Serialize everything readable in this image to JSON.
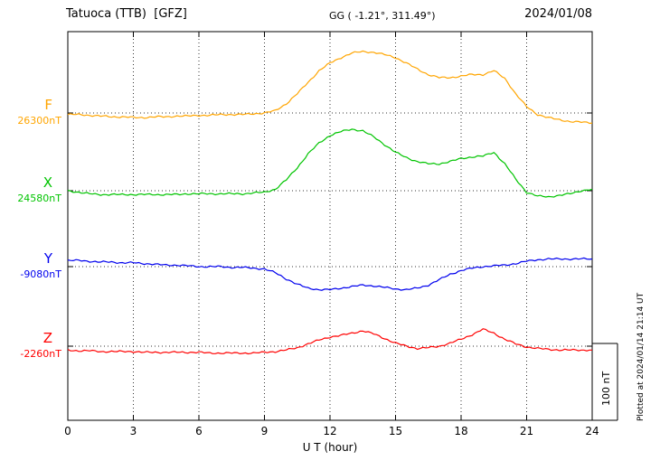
{
  "header": {
    "station": "Tatuoca (TTB)  [GFZ]",
    "coords": "GG ( -1.21°, 311.49°)",
    "date": "2024/01/08"
  },
  "footer": {
    "xlabel": "U T (hour)"
  },
  "side": {
    "scale_label": "100 nT",
    "plotted_at": "Plotted at 2024/01/14 21:14 UT"
  },
  "chart_data": {
    "type": "line",
    "title": "Tatuoca (TTB) [GFZ] magnetogram 2024/01/08",
    "xlabel": "U T (hour)",
    "x_range": [
      0,
      24
    ],
    "x_ticks": [
      0,
      3,
      6,
      9,
      12,
      15,
      18,
      21,
      24
    ],
    "x_step_hours": 0.5,
    "scale_bar_nT": 100,
    "grid": "dotted",
    "series": [
      {
        "name": "F",
        "baseline_nT": 26300,
        "baseline_label": "26300nT",
        "color": "#FFA500",
        "values_unit": "nT offset from baseline",
        "values": [
          -2,
          -2,
          -3,
          -4,
          -5,
          -5,
          -6,
          -6,
          -5,
          -5,
          -4,
          -4,
          -3,
          -3,
          -2,
          -2,
          -2,
          -1,
          0,
          3,
          12,
          25,
          40,
          55,
          65,
          72,
          78,
          80,
          79,
          76,
          72,
          65,
          57,
          50,
          46,
          46,
          48,
          50,
          50,
          55,
          45,
          25,
          8,
          -2,
          -6,
          -9,
          -11,
          -12,
          -13
        ]
      },
      {
        "name": "X",
        "baseline_nT": 24580,
        "baseline_label": "24580nT",
        "color": "#00C400",
        "values_unit": "nT offset from baseline",
        "values": [
          0,
          -2,
          -4,
          -5,
          -5,
          -5,
          -5,
          -5,
          -5,
          -5,
          -5,
          -4,
          -4,
          -4,
          -4,
          -4,
          -4,
          -3,
          -2,
          2,
          14,
          30,
          48,
          62,
          72,
          77,
          80,
          78,
          70,
          60,
          50,
          43,
          38,
          35,
          35,
          38,
          42,
          44,
          45,
          50,
          35,
          15,
          -2,
          -7,
          -8,
          -6,
          -4,
          0,
          2
        ]
      },
      {
        "name": "Y",
        "baseline_nT": -9080,
        "baseline_label": "-9080nT",
        "color": "#0000EE",
        "values_unit": "nT offset from baseline",
        "values": [
          8,
          8,
          7,
          6,
          6,
          5,
          5,
          4,
          3,
          2,
          2,
          1,
          0,
          0,
          0,
          -1,
          -1,
          -2,
          -3,
          -8,
          -16,
          -23,
          -28,
          -30,
          -30,
          -28,
          -26,
          -24,
          -25,
          -27,
          -29,
          -30,
          -28,
          -24,
          -17,
          -10,
          -5,
          -2,
          0,
          1,
          2,
          4,
          7,
          9,
          10,
          10,
          10,
          10,
          10
        ]
      },
      {
        "name": "Z",
        "baseline_nT": -2260,
        "baseline_label": "-2260nT",
        "color": "#FF0000",
        "values_unit": "nT offset from baseline",
        "values": [
          -5,
          -6,
          -6,
          -7,
          -7,
          -7,
          -7,
          -8,
          -8,
          -8,
          -8,
          -8,
          -8,
          -9,
          -9,
          -9,
          -9,
          -9,
          -8,
          -7,
          -5,
          -2,
          3,
          8,
          12,
          14,
          17,
          20,
          16,
          10,
          4,
          0,
          -3,
          -2,
          0,
          4,
          9,
          15,
          22,
          17,
          9,
          3,
          -1,
          -3,
          -4,
          -5,
          -5,
          -5,
          -5
        ]
      }
    ]
  }
}
